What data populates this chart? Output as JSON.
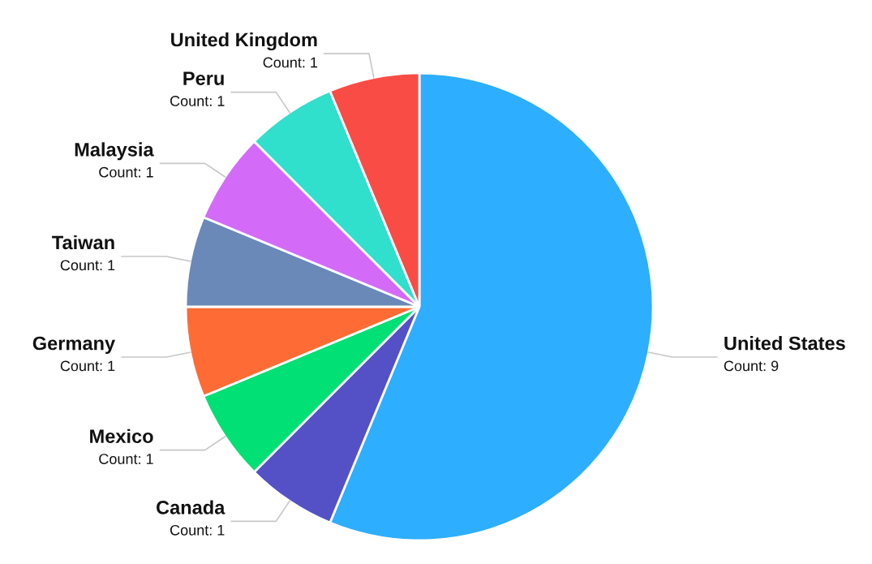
{
  "chart_data": {
    "type": "pie",
    "categories": [
      "United States",
      "Canada",
      "Mexico",
      "Germany",
      "Taiwan",
      "Malaysia",
      "Peru",
      "United Kingdom"
    ],
    "values": [
      9,
      1,
      1,
      1,
      1,
      1,
      1,
      1
    ],
    "colors": [
      "#2eaefe",
      "#5450c6",
      "#00e074",
      "#ff6b35",
      "#6a89b8",
      "#d36bf8",
      "#30dfcc",
      "#f94c45"
    ],
    "value_labels": [
      "Count: 9",
      "Count: 1",
      "Count: 1",
      "Count: 1",
      "Count: 1",
      "Count: 1",
      "Count: 1",
      "Count: 1"
    ]
  }
}
